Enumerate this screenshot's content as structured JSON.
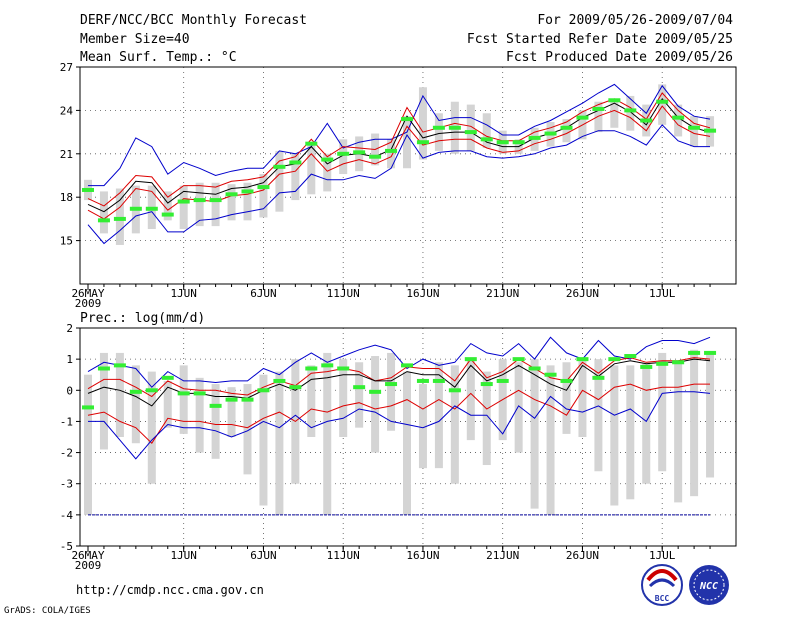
{
  "header": {
    "title": "DERF/NCC/BCC Monthly Forecast",
    "member_size": "Member Size=40",
    "variable": "Mean Surf. Temp.: °C",
    "period": "For 2009/05/26-2009/07/04",
    "refer_date": "Fcst Started Refer Date 2009/05/25",
    "produced_date": "Fcst Produced Date 2009/05/26"
  },
  "footer": {
    "url": "http://cmdp.ncc.cma.gov.cn",
    "credit": "GrADS: COLA/IGES",
    "logo_left": "BCC",
    "logo_right": "NCC"
  },
  "colors": {
    "box": "#d4d4d4",
    "ensemble_max_min": "#0000cc",
    "ensemble_mean": "#000000",
    "spread": "#dd0000",
    "observed": "#33ee33"
  },
  "chart_data": [
    {
      "type": "box-line",
      "title": "Mean Surf. Temp.: °C",
      "ylim": [
        12,
        27
      ],
      "yticks": [
        15,
        18,
        21,
        24,
        27
      ],
      "xticks": [
        {
          "day": 0,
          "label": "26MAY"
        },
        {
          "day": 6,
          "label": "1JUN"
        },
        {
          "day": 11,
          "label": "6JUN"
        },
        {
          "day": 16,
          "label": "11JUN"
        },
        {
          "day": 21,
          "label": "16JUN"
        },
        {
          "day": 26,
          "label": "21JUN"
        },
        {
          "day": 31,
          "label": "26JUN"
        },
        {
          "day": 36,
          "label": "1JUL"
        }
      ],
      "year_label": "2009",
      "days": 40,
      "box_low": [
        17.8,
        15.5,
        14.7,
        15.5,
        15.8,
        16.4,
        15.8,
        16.0,
        16.0,
        16.4,
        16.4,
        16.6,
        17.0,
        17.8,
        18.2,
        18.4,
        19.6,
        19.8,
        20.2,
        20.0,
        20.0,
        20.6,
        21.2,
        21.0,
        21.2,
        21.4,
        21.0,
        21.0,
        21.2,
        21.5,
        21.8,
        22.0,
        22.5,
        22.8,
        22.6,
        22.2,
        23.0,
        22.2,
        21.5,
        21.5
      ],
      "box_high": [
        19.2,
        18.4,
        18.6,
        18.8,
        18.8,
        18.4,
        18.8,
        19.0,
        19.0,
        18.9,
        19.0,
        19.6,
        21.2,
        21.0,
        21.6,
        21.0,
        22.0,
        22.2,
        22.4,
        22.0,
        23.6,
        25.6,
        23.8,
        24.6,
        24.4,
        23.8,
        22.6,
        22.0,
        22.8,
        23.2,
        23.4,
        24.0,
        24.6,
        24.8,
        25.0,
        24.4,
        25.8,
        24.4,
        23.6,
        23.6
      ],
      "observed": [
        18.5,
        16.4,
        16.5,
        17.2,
        17.2,
        16.8,
        17.7,
        17.8,
        17.8,
        18.2,
        18.4,
        18.7,
        20.1,
        20.4,
        21.7,
        20.6,
        21.0,
        21.1,
        20.8,
        21.2,
        23.4,
        21.8,
        22.8,
        22.8,
        22.5,
        22.0,
        21.8,
        21.8,
        22.1,
        22.4,
        22.8,
        23.5,
        24.1,
        24.7,
        24.0,
        23.3,
        24.6,
        23.5,
        22.8,
        22.6
      ],
      "series": [
        {
          "name": "ensemble max",
          "values": [
            18.8,
            18.8,
            20.0,
            22.1,
            21.5,
            19.6,
            20.4,
            20.0,
            19.5,
            19.8,
            20.0,
            20.0,
            21.2,
            21.0,
            21.5,
            23.1,
            21.4,
            21.8,
            22.0,
            22.0,
            22.5,
            25.0,
            23.3,
            23.5,
            23.5,
            23.0,
            22.3,
            22.3,
            22.9,
            23.3,
            23.9,
            24.5,
            25.2,
            25.8,
            24.8,
            23.8,
            25.7,
            24.3,
            23.6,
            23.4
          ]
        },
        {
          "name": "ensemble mean +1 sd",
          "values": [
            17.9,
            17.4,
            18.3,
            19.5,
            19.4,
            18.0,
            18.8,
            18.8,
            18.7,
            19.1,
            19.2,
            19.4,
            20.5,
            20.8,
            22.0,
            20.8,
            21.5,
            21.4,
            21.3,
            21.8,
            24.2,
            22.5,
            22.8,
            23.1,
            22.9,
            22.2,
            21.9,
            21.9,
            22.5,
            22.8,
            23.2,
            23.9,
            24.4,
            24.8,
            24.2,
            23.4,
            25.2,
            24.0,
            23.1,
            22.8
          ]
        },
        {
          "name": "ensemble mean",
          "values": [
            17.5,
            17.0,
            17.8,
            19.1,
            19.0,
            17.6,
            18.4,
            18.3,
            18.2,
            18.6,
            18.7,
            19.0,
            20.1,
            20.3,
            21.5,
            20.3,
            20.9,
            21.0,
            20.8,
            21.3,
            23.6,
            22.1,
            22.4,
            22.5,
            22.5,
            21.8,
            21.5,
            21.5,
            22.1,
            22.4,
            22.8,
            23.5,
            24.0,
            24.5,
            23.9,
            23.0,
            24.8,
            23.5,
            22.8,
            22.5
          ]
        },
        {
          "name": "ensemble mean -1 sd",
          "values": [
            17.1,
            16.5,
            17.3,
            18.6,
            18.4,
            17.1,
            17.9,
            17.8,
            17.7,
            18.1,
            18.2,
            18.5,
            19.6,
            19.8,
            21.0,
            19.8,
            20.3,
            20.6,
            20.3,
            20.8,
            22.9,
            21.6,
            21.9,
            22.0,
            22.0,
            21.4,
            21.1,
            21.2,
            21.7,
            22.0,
            22.4,
            23.0,
            23.6,
            24.0,
            23.5,
            22.6,
            24.3,
            23.0,
            22.4,
            22.2
          ]
        },
        {
          "name": "ensemble min",
          "values": [
            16.1,
            14.8,
            15.7,
            16.7,
            17.0,
            15.6,
            15.6,
            16.4,
            16.5,
            16.8,
            17.0,
            17.2,
            18.3,
            18.4,
            19.6,
            19.2,
            19.2,
            19.5,
            19.3,
            20.0,
            22.3,
            20.7,
            21.1,
            21.2,
            21.2,
            20.8,
            20.7,
            20.8,
            21.0,
            21.4,
            21.6,
            22.2,
            22.6,
            22.6,
            22.2,
            21.6,
            23.0,
            21.9,
            21.5,
            21.5
          ]
        }
      ]
    },
    {
      "type": "box-line",
      "title": "Prec.: log(mm/d)",
      "ylim": [
        -5,
        2
      ],
      "yticks": [
        -5,
        -4,
        -3,
        -2,
        -1,
        0,
        1,
        2
      ],
      "xticks": [
        {
          "day": 0,
          "label": "26MAY"
        },
        {
          "day": 6,
          "label": "1JUN"
        },
        {
          "day": 11,
          "label": "6JUN"
        },
        {
          "day": 16,
          "label": "11JUN"
        },
        {
          "day": 21,
          "label": "16JUN"
        },
        {
          "day": 26,
          "label": "21JUN"
        },
        {
          "day": 31,
          "label": "26JUN"
        },
        {
          "day": 36,
          "label": "1JUL"
        }
      ],
      "year_label": "2009",
      "days": 40,
      "baseline": -4,
      "box_low": [
        -4.0,
        -1.9,
        -1.5,
        -1.7,
        -3.0,
        -1.2,
        -1.4,
        -2.0,
        -2.2,
        -1.5,
        -2.7,
        -3.7,
        -4.0,
        -3.0,
        -1.5,
        -4.0,
        -1.5,
        -1.2,
        -2.0,
        -1.3,
        -4.0,
        -2.5,
        -2.5,
        -3.0,
        -1.6,
        -2.4,
        -1.6,
        -2.0,
        -3.8,
        -4.0,
        -1.4,
        -1.5,
        -2.6,
        -3.7,
        -3.5,
        -3.0,
        -2.6,
        -3.6,
        -3.4,
        -2.8
      ],
      "box_high": [
        0.5,
        1.2,
        1.2,
        0.8,
        0.6,
        0.3,
        0.8,
        0.4,
        0.2,
        0.1,
        0.2,
        0.5,
        0.6,
        1.0,
        0.8,
        1.2,
        1.0,
        0.9,
        1.1,
        1.2,
        0.6,
        0.2,
        0.9,
        0.8,
        1.0,
        0.6,
        1.0,
        0.9,
        1.0,
        0.8,
        0.9,
        1.0,
        1.0,
        0.8,
        0.8,
        0.9,
        1.2,
        0.9,
        1.3,
        1.2
      ],
      "observed": [
        -0.55,
        0.7,
        0.8,
        -0.05,
        0.0,
        0.4,
        -0.1,
        -0.1,
        -0.5,
        -0.3,
        -0.3,
        0.0,
        0.3,
        0.1,
        0.7,
        0.8,
        0.7,
        0.1,
        -0.05,
        0.2,
        0.8,
        0.3,
        0.3,
        0.0,
        1.0,
        0.2,
        0.3,
        1.0,
        0.7,
        0.5,
        0.3,
        1.0,
        0.4,
        1.0,
        1.1,
        0.75,
        0.85,
        0.9,
        1.2,
        1.2
      ],
      "series": [
        {
          "name": "ensemble max",
          "values": [
            0.6,
            0.9,
            0.8,
            0.7,
            0.1,
            0.6,
            0.3,
            0.3,
            0.25,
            0.3,
            0.3,
            0.7,
            0.5,
            0.9,
            1.2,
            0.9,
            1.1,
            1.3,
            1.45,
            1.3,
            0.7,
            1.0,
            0.8,
            0.9,
            1.5,
            1.2,
            1.1,
            1.5,
            1.0,
            1.7,
            1.2,
            1.0,
            1.6,
            1.1,
            1.0,
            1.4,
            1.6,
            1.6,
            1.5,
            1.7
          ]
        },
        {
          "name": "ensemble mean +1 sd",
          "values": [
            0.05,
            0.35,
            0.35,
            0.1,
            -0.2,
            0.3,
            0.05,
            0.0,
            0.0,
            -0.1,
            -0.15,
            0.1,
            0.3,
            0.15,
            0.55,
            0.6,
            0.7,
            0.6,
            0.3,
            0.4,
            0.75,
            0.7,
            0.7,
            0.3,
            1.0,
            0.4,
            0.6,
            1.0,
            0.7,
            0.4,
            0.3,
            0.9,
            0.55,
            0.95,
            1.05,
            0.9,
            0.95,
            0.95,
            1.05,
            1.0
          ]
        },
        {
          "name": "ensemble mean",
          "values": [
            -0.1,
            0.1,
            0.0,
            -0.2,
            -0.5,
            0.1,
            -0.1,
            -0.1,
            -0.2,
            -0.2,
            -0.25,
            0.0,
            0.2,
            0.0,
            0.35,
            0.4,
            0.5,
            0.5,
            0.3,
            0.3,
            0.6,
            0.5,
            0.5,
            0.1,
            0.8,
            0.3,
            0.5,
            0.8,
            0.5,
            0.2,
            0.0,
            0.8,
            0.45,
            0.85,
            0.95,
            0.85,
            0.9,
            0.9,
            1.0,
            0.95
          ]
        },
        {
          "name": "ensemble mean -1 sd",
          "values": [
            -0.8,
            -0.7,
            -1.0,
            -1.2,
            -1.7,
            -0.9,
            -1.0,
            -1.0,
            -1.1,
            -1.1,
            -1.2,
            -0.9,
            -0.7,
            -1.0,
            -0.6,
            -0.7,
            -0.5,
            -0.4,
            -0.6,
            -0.5,
            -0.3,
            -0.6,
            -0.3,
            -0.6,
            -0.1,
            -0.6,
            -0.3,
            0.0,
            -0.3,
            -0.5,
            -0.8,
            0.0,
            -0.3,
            0.1,
            0.2,
            0.0,
            0.1,
            0.1,
            0.2,
            0.2
          ]
        },
        {
          "name": "ensemble min",
          "values": [
            -1.0,
            -1.0,
            -1.6,
            -2.2,
            -1.6,
            -1.1,
            -1.2,
            -1.2,
            -1.3,
            -1.5,
            -1.3,
            -1.0,
            -1.2,
            -0.8,
            -1.2,
            -1.0,
            -0.9,
            -0.6,
            -0.7,
            -1.0,
            -1.1,
            -1.2,
            -1.0,
            -0.5,
            -0.8,
            -0.8,
            -1.4,
            -0.5,
            -0.9,
            -0.2,
            -0.6,
            -0.7,
            -0.5,
            -0.8,
            -0.6,
            -1.0,
            -0.1,
            -0.05,
            -0.05,
            -0.1
          ]
        }
      ]
    }
  ]
}
